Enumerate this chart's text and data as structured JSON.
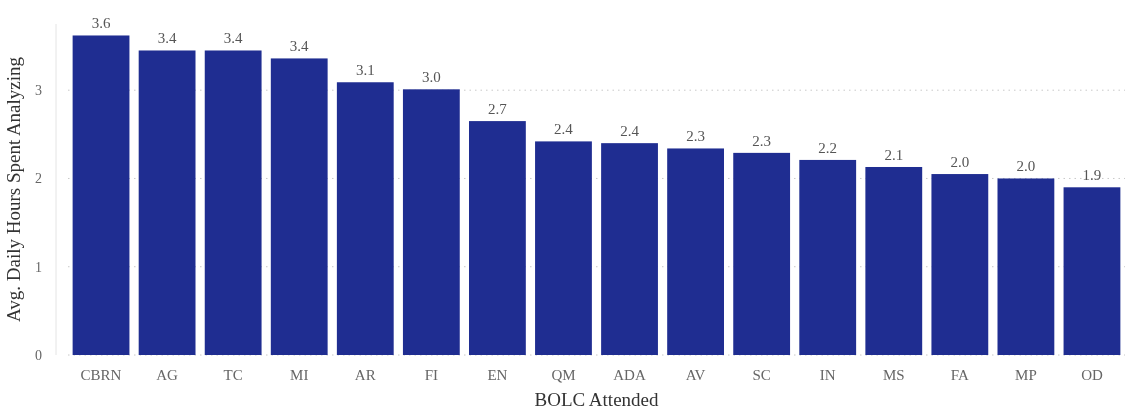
{
  "chart_data": {
    "type": "bar",
    "xlabel": "BOLC Attended",
    "ylabel": "Avg. Daily Hours Spent Analyzing",
    "categories": [
      "CBRN",
      "AG",
      "TC",
      "MI",
      "AR",
      "FI",
      "EN",
      "QM",
      "ADA",
      "AV",
      "SC",
      "IN",
      "MS",
      "FA",
      "MP",
      "OD"
    ],
    "values": [
      3.62,
      3.45,
      3.45,
      3.36,
      3.09,
      3.01,
      2.65,
      2.42,
      2.4,
      2.34,
      2.29,
      2.21,
      2.13,
      2.05,
      2.0,
      1.9
    ],
    "value_labels": [
      "3.6",
      "3.4",
      "3.4",
      "3.4",
      "3.1",
      "3.0",
      "2.7",
      "2.4",
      "2.4",
      "2.3",
      "2.3",
      "2.2",
      "2.1",
      "2.0",
      "2.0",
      "1.9"
    ],
    "color": "#1f2d91",
    "ylim": [
      0,
      3.75
    ],
    "yticks": [
      0,
      1,
      2,
      3
    ],
    "grid": "y"
  }
}
